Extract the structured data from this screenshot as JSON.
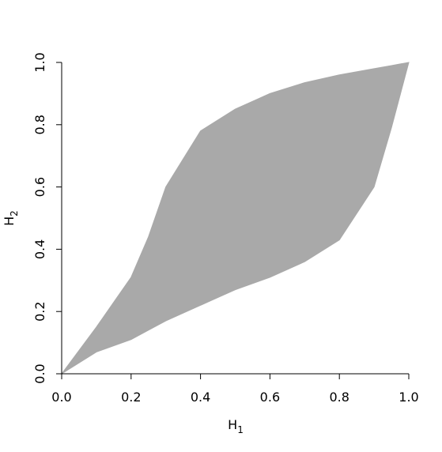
{
  "chart_data": {
    "type": "band",
    "x_label": "H",
    "x_label_sub": "1",
    "y_label": "H",
    "y_label_sub": "2",
    "color": "#a9a9a9",
    "x": [
      0,
      0.1,
      0.2,
      0.25,
      0.3,
      0.4,
      0.5,
      0.6,
      0.7,
      0.8,
      0.9,
      0.95,
      1
    ],
    "series": [
      {
        "values": [
          0,
          0.15,
          0.31,
          0.44,
          0.6,
          0.78,
          0.85,
          0.9,
          0.935,
          0.96,
          0.98,
          0.99,
          1
        ]
      },
      {
        "values": [
          0,
          0.07,
          0.11,
          0.14,
          0.17,
          0.22,
          0.27,
          0.31,
          0.36,
          0.43,
          0.6,
          0.79,
          1
        ]
      }
    ],
    "xlim": [
      0,
      1
    ],
    "ylim": [
      0,
      1
    ],
    "xticks": [
      {
        "value": 0,
        "label": "0.0"
      },
      0.2,
      0.4,
      0.6,
      0.8,
      {
        "value": 1,
        "label": "1.0"
      }
    ],
    "yticks": [
      {
        "value": 0,
        "label": "0.0"
      },
      0.2,
      0.4,
      0.6,
      0.8,
      {
        "value": 1,
        "label": "1.0"
      }
    ]
  }
}
